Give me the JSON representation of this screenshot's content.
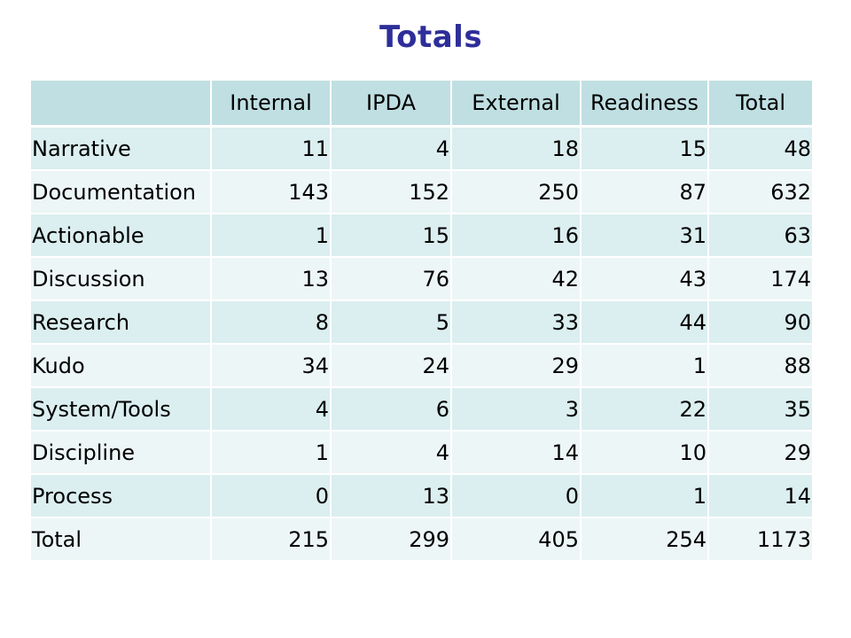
{
  "title": "Totals",
  "chart_data": {
    "type": "table",
    "title": "Totals",
    "columns": [
      "",
      "Internal",
      "IPDA",
      "External",
      "Readiness",
      "Total"
    ],
    "rows": [
      [
        "Narrative",
        11,
        4,
        18,
        15,
        48
      ],
      [
        "Documentation",
        143,
        152,
        250,
        87,
        632
      ],
      [
        "Actionable",
        1,
        15,
        16,
        31,
        63
      ],
      [
        "Discussion",
        13,
        76,
        42,
        43,
        174
      ],
      [
        "Research",
        8,
        5,
        33,
        44,
        90
      ],
      [
        "Kudo",
        34,
        24,
        29,
        1,
        88
      ],
      [
        "System/Tools",
        4,
        6,
        3,
        22,
        35
      ],
      [
        "Discipline",
        1,
        4,
        14,
        10,
        29
      ],
      [
        "Process",
        0,
        13,
        0,
        1,
        14
      ],
      [
        "Total",
        215,
        299,
        405,
        254,
        1173
      ]
    ]
  },
  "colors": {
    "title": "#2e2e9a",
    "header_bg": "#c0dfe2",
    "row_bg_dark": "#dbeef0",
    "row_bg_light": "#edf6f7"
  }
}
